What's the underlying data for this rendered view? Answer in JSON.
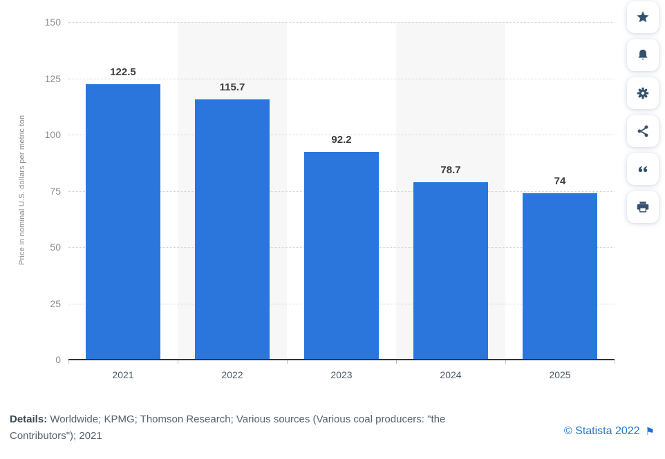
{
  "chart_data": {
    "type": "bar",
    "categories": [
      "2021",
      "2022",
      "2023",
      "2024",
      "2025"
    ],
    "values": [
      122.5,
      115.7,
      92.2,
      78.7,
      74
    ],
    "value_labels": [
      "122.5",
      "115.7",
      "92.2",
      "78.7",
      "74"
    ],
    "title": "",
    "xlabel": "",
    "ylabel": "Price in nominal U.S. dollars per metric ton",
    "ylim": [
      0,
      150
    ],
    "ytick_step": 25,
    "ytick_labels": [
      "0",
      "25",
      "50",
      "75",
      "100",
      "125",
      "150"
    ],
    "grid": "horizontal-dotted",
    "legend": "none",
    "bar_color": "#2a76dd",
    "band_color": "#f7f7f7",
    "banded_category_indexes": [
      1,
      3
    ]
  },
  "toolbar": {
    "icon_color": "#34516e",
    "buttons": [
      {
        "name": "favorite",
        "icon": "star-icon"
      },
      {
        "name": "alerts",
        "icon": "bell-icon"
      },
      {
        "name": "settings",
        "icon": "gear-icon"
      },
      {
        "name": "share",
        "icon": "share-icon"
      },
      {
        "name": "cite",
        "icon": "quote-icon"
      },
      {
        "name": "print",
        "icon": "print-icon"
      }
    ]
  },
  "footer": {
    "details_label": "Details:",
    "details_text": " Worldwide; KPMG; Thomson Research; Various sources (Various coal producers: \"the Contributors\"); 2021",
    "copyright": "© Statista 2022",
    "copyright_color": "#2777ce",
    "flag_icon": "⚑"
  }
}
